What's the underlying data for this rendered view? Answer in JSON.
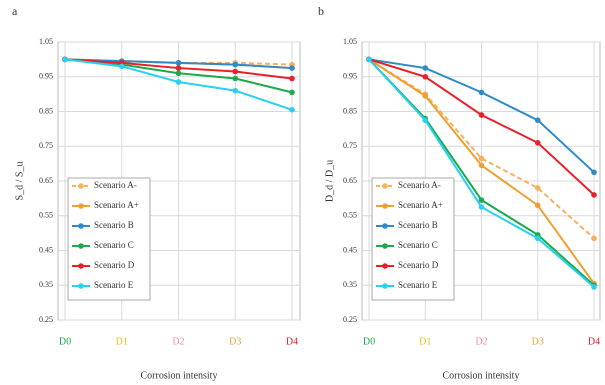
{
  "chart_data": [
    {
      "type": "line",
      "panel": "a",
      "ylabel": "S_d / S_u",
      "xlabel": "Corrosion intensity",
      "categories": [
        "D0",
        "D1",
        "D2",
        "D3",
        "D4"
      ],
      "category_colors": [
        "#1aab4a",
        "#e8c020",
        "#f08ca0",
        "#f0a030",
        "#e8202a"
      ],
      "ylim": [
        0.25,
        1.05
      ],
      "yticks": [
        0.25,
        0.35,
        0.45,
        0.55,
        0.65,
        0.75,
        0.85,
        0.95,
        1.05
      ],
      "grid": true,
      "series": [
        {
          "name": "Scenario A-",
          "color": "#f5b060",
          "dash": true,
          "values": [
            1,
            0.995,
            0.99,
            0.99,
            0.985
          ]
        },
        {
          "name": "Scenario A+",
          "color": "#f0a030",
          "values": [
            1,
            0.995,
            0.99,
            0.985,
            0.975
          ]
        },
        {
          "name": "Scenario B",
          "color": "#2e8bc9",
          "values": [
            1,
            0.995,
            0.99,
            0.985,
            0.975
          ]
        },
        {
          "name": "Scenario C",
          "color": "#1aab4a",
          "values": [
            1,
            0.985,
            0.96,
            0.945,
            0.905
          ]
        },
        {
          "name": "Scenario D",
          "color": "#e8202a",
          "values": [
            1,
            0.99,
            0.975,
            0.965,
            0.945
          ]
        },
        {
          "name": "Scenario E",
          "color": "#2ad0f0",
          "values": [
            1,
            0.98,
            0.935,
            0.91,
            0.855
          ]
        }
      ]
    },
    {
      "type": "line",
      "panel": "b",
      "ylabel": "D_d / D_u",
      "xlabel": "Corrosion intensity",
      "categories": [
        "D0",
        "D1",
        "D2",
        "D3",
        "D4"
      ],
      "category_colors": [
        "#1aab4a",
        "#e8c020",
        "#f08ca0",
        "#f0a030",
        "#e8202a"
      ],
      "ylim": [
        0.25,
        1.05
      ],
      "yticks": [
        0.25,
        0.35,
        0.45,
        0.55,
        0.65,
        0.75,
        0.85,
        0.95,
        1.05
      ],
      "grid": true,
      "series": [
        {
          "name": "Scenario A-",
          "color": "#f5b060",
          "dash": true,
          "values": [
            1,
            0.9,
            0.715,
            0.63,
            0.485
          ]
        },
        {
          "name": "Scenario A+",
          "color": "#f0a030",
          "values": [
            1,
            0.895,
            0.695,
            0.58,
            0.355
          ]
        },
        {
          "name": "Scenario B",
          "color": "#2e8bc9",
          "values": [
            1,
            0.975,
            0.905,
            0.825,
            0.675
          ]
        },
        {
          "name": "Scenario C",
          "color": "#1aab4a",
          "values": [
            1,
            0.83,
            0.595,
            0.495,
            0.35
          ]
        },
        {
          "name": "Scenario D",
          "color": "#e8202a",
          "values": [
            1,
            0.95,
            0.84,
            0.76,
            0.61
          ]
        },
        {
          "name": "Scenario E",
          "color": "#2ad0f0",
          "values": [
            1,
            0.825,
            0.575,
            0.485,
            0.345
          ]
        }
      ]
    }
  ]
}
